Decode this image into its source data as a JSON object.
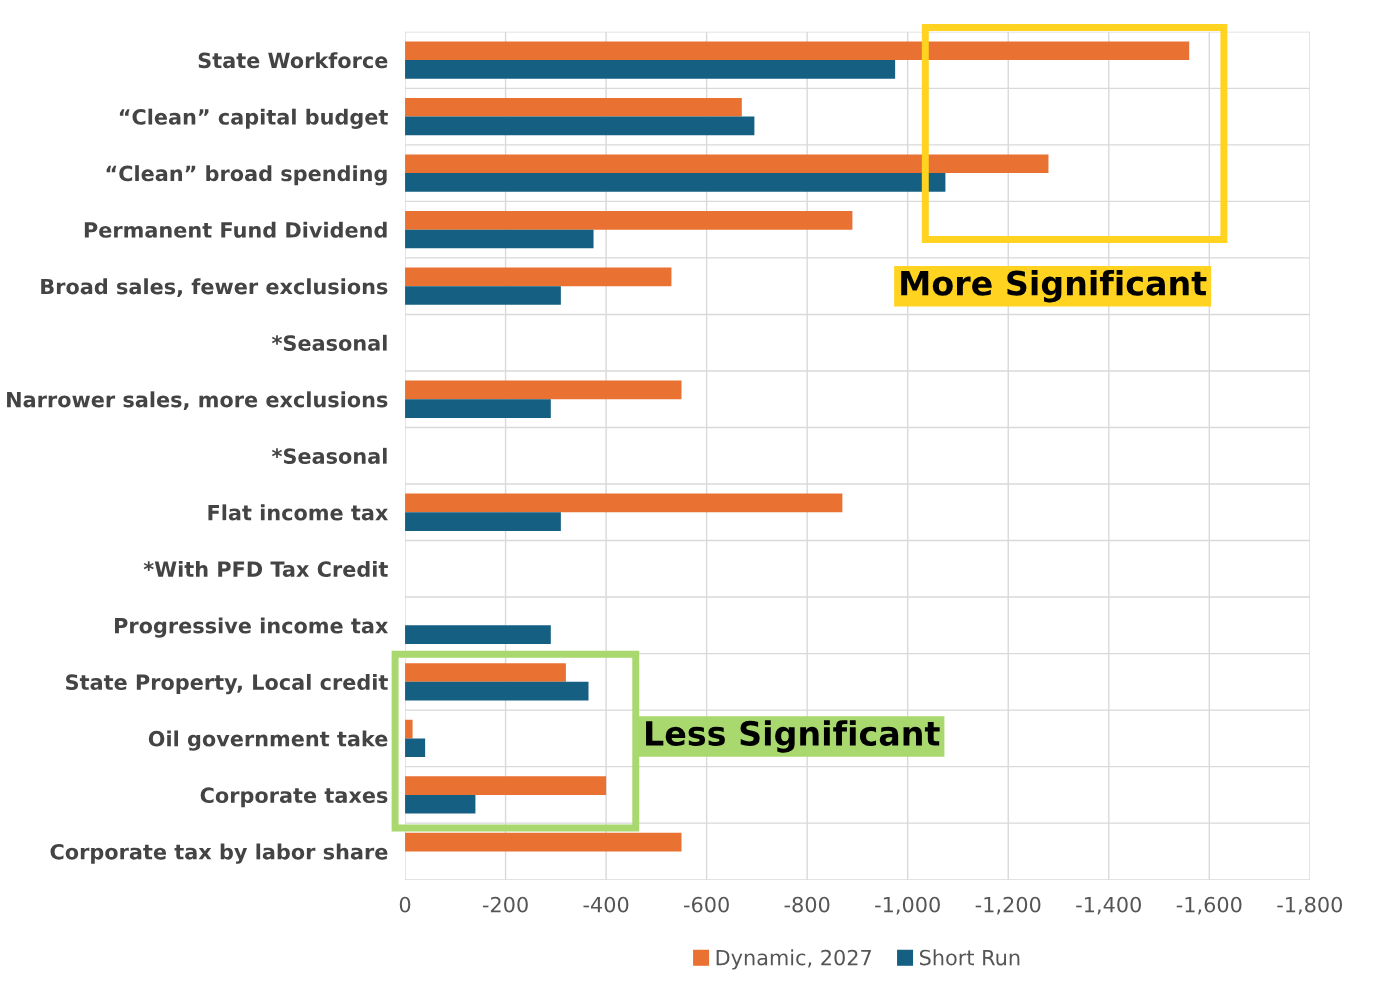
{
  "chart_data": {
    "type": "bar",
    "orientation": "horizontal",
    "categories": [
      "State Workforce",
      "“Clean” capital budget",
      "“Clean” broad spending",
      "Permanent Fund Dividend",
      "Broad sales, fewer exclusions",
      "*Seasonal",
      "Narrower sales, more exclusions",
      "*Seasonal",
      "Flat income tax",
      "*With PFD Tax Credit",
      "Progressive income tax",
      "State Property, Local credit",
      "Oil government take",
      "Corporate taxes",
      "Corporate tax by labor share"
    ],
    "series": [
      {
        "name": "Dynamic, 2027",
        "color": "#e97132",
        "values": [
          -1560,
          -670,
          -1280,
          -890,
          -530,
          null,
          -550,
          null,
          -870,
          null,
          null,
          -320,
          -15,
          -400,
          -550
        ]
      },
      {
        "name": "Short Run",
        "color": "#156082",
        "values": [
          -975,
          -695,
          -1075,
          -375,
          -310,
          null,
          -290,
          null,
          -310,
          null,
          -290,
          -365,
          -40,
          -140,
          null
        ]
      }
    ],
    "xlim": [
      0,
      -1800
    ],
    "xticks": [
      0,
      -200,
      -400,
      -600,
      -800,
      {
        "value": -1000,
        "label": "-1,000"
      },
      {
        "value": -1200,
        "label": "-1,200"
      },
      {
        "value": -1400,
        "label": "-1,400"
      },
      {
        "value": -1600,
        "label": "-1,600"
      },
      {
        "value": -1800,
        "label": "-1,800"
      }
    ],
    "grid": true,
    "legend": "bottom",
    "annotations": [
      "More Significant",
      "Less Significant"
    ]
  }
}
